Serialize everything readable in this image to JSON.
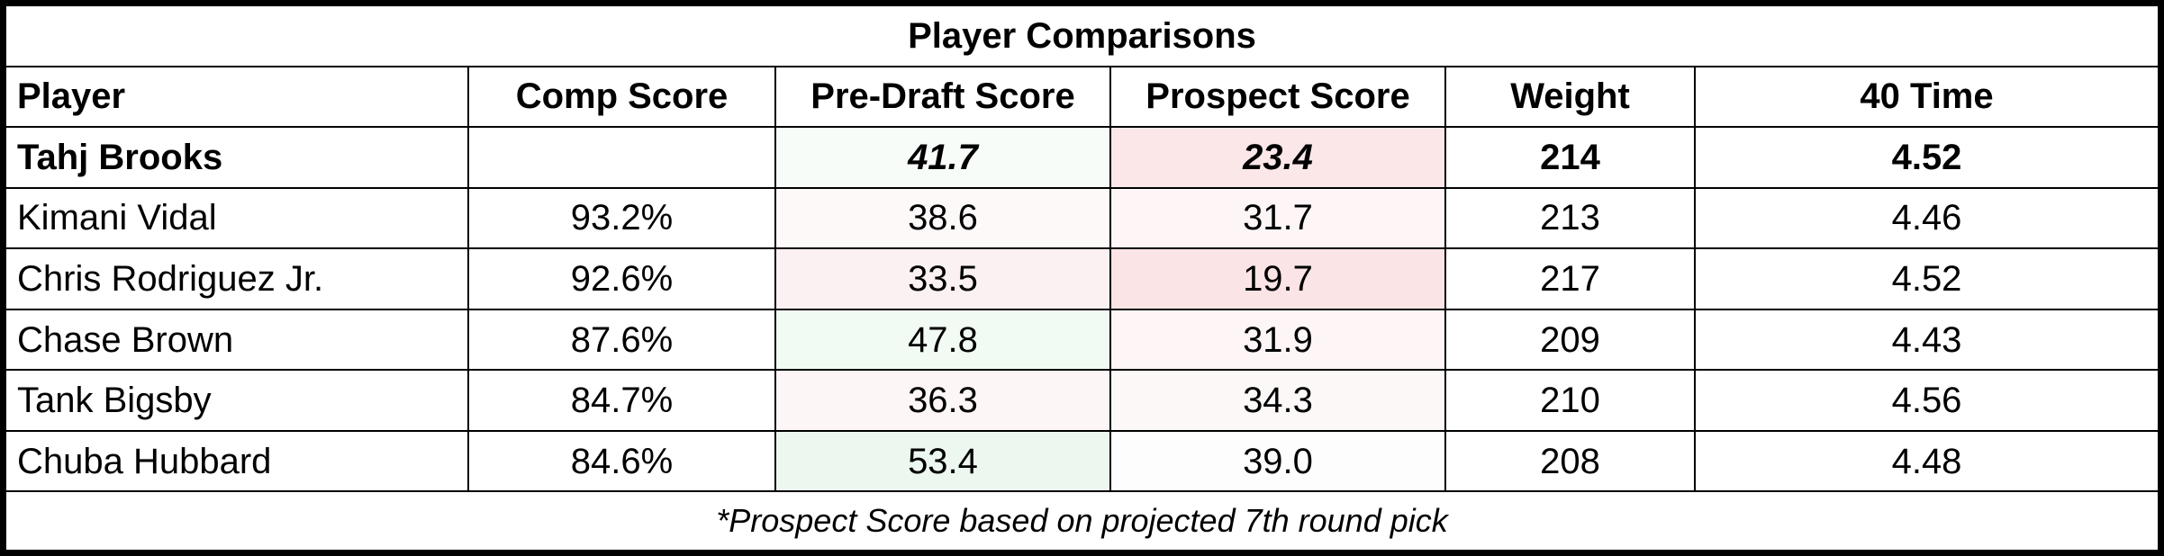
{
  "title": "Player Comparisons",
  "columns": [
    "Player",
    "Comp Score",
    "Pre-Draft Score",
    "Prospect Score",
    "Weight",
    "40 Time"
  ],
  "subject": {
    "player": "Tahj Brooks",
    "comp_score": "",
    "pre_draft_score": "41.7",
    "prospect_score": "23.4",
    "weight": "214",
    "forty_time": "4.52",
    "pre_draft_color": "#f7fcf8",
    "prospect_color": "#fbe7e8"
  },
  "comparisons": [
    {
      "player": "Kimani Vidal",
      "comp_score": "93.2%",
      "pre_draft_score": "38.6",
      "prospect_score": "31.7",
      "weight": "213",
      "forty_time": "4.46",
      "pre_draft_color": "#fdf9f9",
      "prospect_color": "#fdf5f6"
    },
    {
      "player": "Chris Rodriguez Jr.",
      "comp_score": "92.6%",
      "pre_draft_score": "33.5",
      "prospect_score": "19.7",
      "weight": "217",
      "forty_time": "4.52",
      "pre_draft_color": "#fcf1f2",
      "prospect_color": "#fae4e5"
    },
    {
      "player": "Chase Brown",
      "comp_score": "87.6%",
      "pre_draft_score": "47.8",
      "prospect_score": "31.9",
      "weight": "209",
      "forty_time": "4.43",
      "pre_draft_color": "#f2faf4",
      "prospect_color": "#fdf5f6"
    },
    {
      "player": "Tank Bigsby",
      "comp_score": "84.7%",
      "pre_draft_score": "36.3",
      "prospect_score": "34.3",
      "weight": "210",
      "forty_time": "4.56",
      "pre_draft_color": "#fdf6f6",
      "prospect_color": "#fdf8f8"
    },
    {
      "player": "Chuba Hubbard",
      "comp_score": "84.6%",
      "pre_draft_score": "53.4",
      "prospect_score": "39.0",
      "weight": "208",
      "forty_time": "4.48",
      "pre_draft_color": "#ecf7ef",
      "prospect_color": "#fefdfd"
    }
  ],
  "footnote": "*Prospect Score based on projected 7th round pick"
}
